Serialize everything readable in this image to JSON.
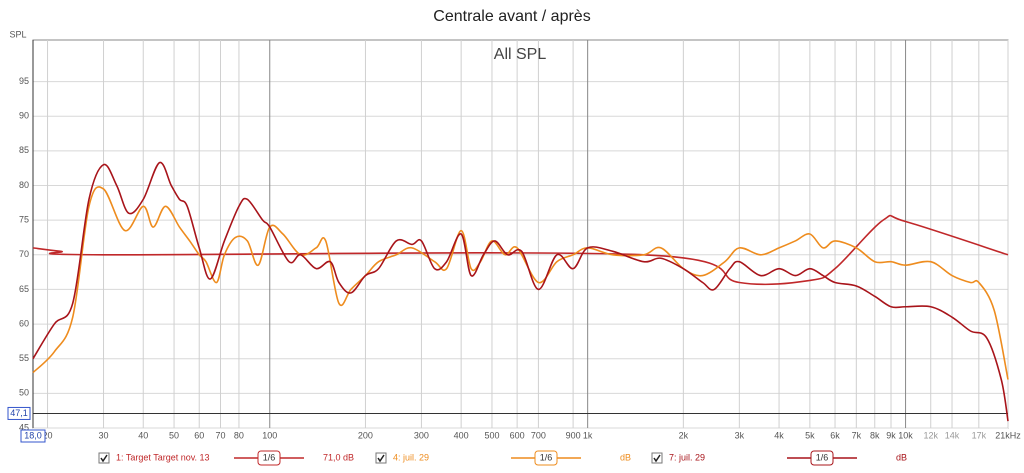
{
  "chart_data": {
    "type": "line",
    "title": "Centrale avant / après",
    "subtitle": "All SPL",
    "y_label": "SPL",
    "xscale": "log",
    "grid": true,
    "xlim": [
      18,
      21000
    ],
    "ylim": [
      45,
      101
    ],
    "xticks": [
      20,
      30,
      40,
      50,
      60,
      70,
      80,
      100,
      200,
      300,
      400,
      500,
      600,
      700,
      900,
      {
        "value": 1000,
        "label": "1k"
      },
      {
        "value": 2000,
        "label": "2k"
      },
      {
        "value": 3000,
        "label": "3k"
      },
      {
        "value": 4000,
        "label": "4k"
      },
      {
        "value": 5000,
        "label": "5k"
      },
      {
        "value": 6000,
        "label": "6k"
      },
      {
        "value": 7000,
        "label": "7k"
      },
      {
        "value": 8000,
        "label": "8k"
      },
      {
        "value": 9000,
        "label": "9k"
      },
      {
        "value": 10000,
        "label": "10k"
      },
      {
        "value": 12000,
        "label": "12k"
      },
      {
        "value": 14000,
        "label": "14k"
      },
      {
        "value": 17000,
        "label": "17k"
      },
      {
        "value": 21000,
        "label": "21kHz"
      }
    ],
    "yticks": [
      45,
      50,
      55,
      60,
      65,
      70,
      75,
      80,
      85,
      90,
      95
    ],
    "cursor": {
      "x": {
        "value": 18,
        "label": "18,0"
      },
      "y": {
        "value": 47.1,
        "label": "47,1"
      }
    },
    "series": [
      {
        "name": "1: Target Target nov. 13",
        "color": "#c0282a",
        "smoothing": "1/6",
        "level": "71,0 dB",
        "x": [
          18,
          22,
          30,
          1500,
          3000,
          5000,
          6000,
          8500,
          10000,
          21000
        ],
        "values": [
          71,
          70.5,
          70,
          70,
          66,
          66.3,
          68,
          75,
          74.8,
          70
        ]
      },
      {
        "name": "4: juil. 29",
        "color": "#ee8c1e",
        "smoothing": "1/6",
        "level": "dB",
        "x": [
          18,
          21,
          24,
          27,
          30,
          35,
          40,
          43,
          47,
          52,
          56,
          60,
          63,
          68,
          72,
          78,
          85,
          92,
          100,
          110,
          125,
          140,
          150,
          165,
          180,
          200,
          220,
          250,
          280,
          330,
          360,
          400,
          430,
          460,
          500,
          550,
          600,
          700,
          800,
          900,
          1000,
          1200,
          1500,
          1700,
          2000,
          2300,
          2700,
          3000,
          3500,
          4000,
          4500,
          5000,
          5500,
          6000,
          7000,
          8000,
          9000,
          10000,
          12000,
          14000,
          16000,
          17000,
          19000,
          21000
        ],
        "values": [
          53,
          56,
          61,
          77,
          79.5,
          73.5,
          77,
          74,
          77,
          74,
          72,
          70,
          69,
          66,
          70,
          72.5,
          72,
          68.5,
          74,
          73,
          70,
          71,
          72,
          63,
          65,
          67,
          69,
          70,
          71,
          69,
          68,
          73.5,
          68,
          69,
          72,
          70,
          71,
          66,
          69,
          70,
          71,
          70,
          70,
          71,
          68,
          67,
          69,
          71,
          70,
          71,
          72,
          73,
          71,
          72,
          71,
          69,
          69,
          68.5,
          69,
          67,
          66,
          66,
          62,
          52
        ]
      },
      {
        "name": "7: juil. 29",
        "color": "#a8141a",
        "smoothing": "1/6",
        "level": "dB",
        "x": [
          18,
          21,
          24,
          27,
          30,
          33,
          36,
          40,
          45,
          49,
          52,
          55,
          60,
          65,
          72,
          80,
          85,
          95,
          100,
          115,
          125,
          140,
          155,
          165,
          180,
          200,
          220,
          250,
          280,
          300,
          330,
          360,
          400,
          430,
          470,
          510,
          560,
          620,
          700,
          800,
          900,
          1000,
          1200,
          1500,
          1700,
          2000,
          2300,
          2500,
          2800,
          3000,
          3500,
          4000,
          4500,
          5000,
          5500,
          6000,
          7000,
          8000,
          9000,
          10000,
          12000,
          14000,
          16000,
          18000,
          20000,
          21000
        ],
        "values": [
          55,
          60,
          63,
          78,
          83,
          80,
          76,
          78,
          83.3,
          80,
          78,
          77,
          71,
          66.5,
          72,
          77,
          78,
          75,
          74,
          69,
          70,
          68,
          69,
          66,
          64.5,
          67,
          68,
          72,
          71.5,
          72,
          68,
          69,
          73,
          67,
          70,
          72,
          70,
          70.5,
          65,
          70,
          68,
          71,
          70.5,
          69,
          69.5,
          68,
          66,
          65,
          68,
          69,
          67,
          68,
          67,
          68,
          67,
          66,
          65.5,
          64,
          62.5,
          62.5,
          62.5,
          61,
          59,
          58,
          52,
          46
        ]
      }
    ]
  }
}
